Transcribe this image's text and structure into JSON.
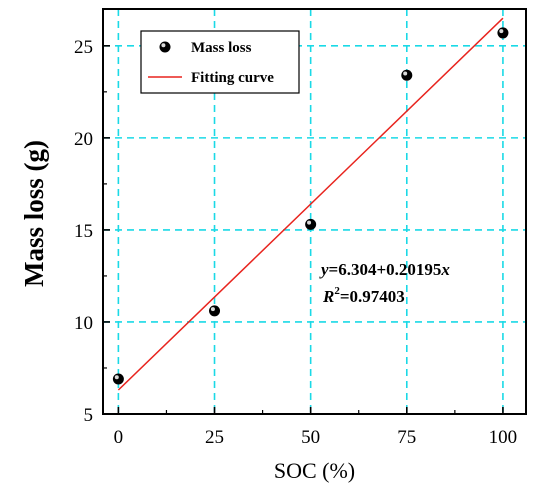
{
  "chart_data": {
    "type": "scatter",
    "title": "",
    "xlabel": "SOC (%)",
    "ylabel": "Mass loss (g)",
    "xlim": [
      -4,
      106
    ],
    "ylim": [
      5,
      27
    ],
    "xticks": [
      0,
      25,
      50,
      75,
      100
    ],
    "yticks": [
      5,
      10,
      15,
      20,
      25
    ],
    "grid": true,
    "grid_color": "#1ad9e6",
    "legend_position": "top-left",
    "series": [
      {
        "name": "Mass loss",
        "kind": "scatter",
        "color": "#000000",
        "x": [
          0,
          25,
          50,
          75,
          100
        ],
        "y": [
          6.9,
          10.6,
          15.3,
          23.4,
          25.7
        ]
      },
      {
        "name": "Fitting curve",
        "kind": "line",
        "color": "#e8241e",
        "x": [
          0,
          100
        ],
        "y": [
          6.304,
          26.499
        ]
      }
    ],
    "annotation": {
      "equation": {
        "y_var": "y",
        "rhs_start": "=6.304+0.20195",
        "x_var": "x"
      },
      "r2": {
        "r": "R",
        "sup": "2",
        "value": "=0.97403"
      }
    }
  }
}
